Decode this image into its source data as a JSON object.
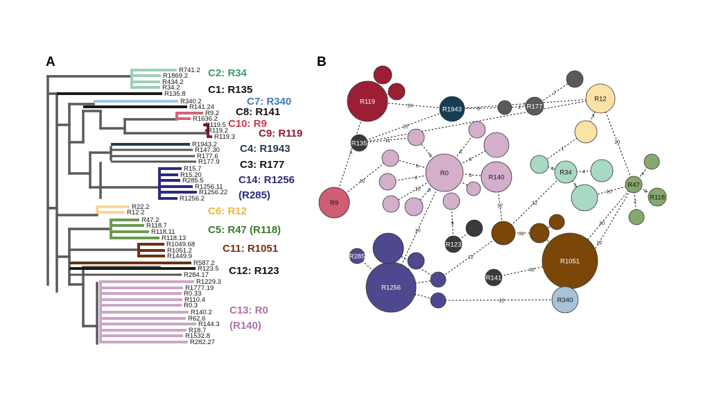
{
  "panels": {
    "a": "A",
    "b": "B"
  },
  "colors": {
    "skeleton": "#5a5a5a",
    "mint": "#9ed0b6",
    "black": "#1a1a1a",
    "lightblue": "#a9c5de",
    "pink": "#d76579",
    "darkred": "#8b1a2c",
    "navy": "#1e3a56",
    "indigo": "#2b2a7a",
    "gold": "#f7d98c",
    "green": "#6a9a52",
    "brown": "#6a3210",
    "lilac": "#cba6c6",
    "gray": "#555555",
    "node_lilac": "#d3afcc",
    "node_mint": "#a8d9c2",
    "node_green": "#86a86d",
    "node_indigo": "#4e488f",
    "node_brown": "#7a4708",
    "node_gold": "#fbe2a6",
    "node_pink": "#cf5d73",
    "node_red": "#9b1e34",
    "node_navy": "#183c56",
    "node_gray": "#5a5a5a",
    "node_lightblue": "#a7c3d8",
    "node_dark": "#3a3a3a"
  },
  "tree": {
    "leaves": [
      {
        "label": "R741.2",
        "color": "mint"
      },
      {
        "label": "R1869.2",
        "color": "mint"
      },
      {
        "label": "R434.2",
        "color": "mint"
      },
      {
        "label": "R34.2",
        "color": "mint"
      },
      {
        "label": "R135.8",
        "color": "black"
      },
      {
        "label": "R340.2",
        "color": "lightblue"
      },
      {
        "label": "R141.24",
        "color": "black"
      },
      {
        "label": "R9.2",
        "color": "pink"
      },
      {
        "label": "R1636.2",
        "color": "pink"
      },
      {
        "label": "R119.5",
        "color": "darkred"
      },
      {
        "label": "R119.2",
        "color": "darkred"
      },
      {
        "label": "R119.3",
        "color": "darkred"
      },
      {
        "label": "R1943.2",
        "color": "navy"
      },
      {
        "label": "R147.30",
        "color": "gray"
      },
      {
        "label": "R177.6",
        "color": "gray"
      },
      {
        "label": "R177.9",
        "color": "gray"
      },
      {
        "label": "R15.7",
        "color": "indigo"
      },
      {
        "label": "R15.20",
        "color": "indigo"
      },
      {
        "label": "R285.5",
        "color": "indigo"
      },
      {
        "label": "R1256.11",
        "color": "indigo"
      },
      {
        "label": "R1256.22",
        "color": "indigo"
      },
      {
        "label": "R1256.2",
        "color": "indigo"
      },
      {
        "label": "R22.2",
        "color": "gold"
      },
      {
        "label": "R12.2",
        "color": "gold"
      },
      {
        "label": "R47.2",
        "color": "green"
      },
      {
        "label": "R118.7",
        "color": "green"
      },
      {
        "label": "R118.11",
        "color": "green"
      },
      {
        "label": "R118.13",
        "color": "green"
      },
      {
        "label": "R1049.68",
        "color": "brown"
      },
      {
        "label": "R1051.2",
        "color": "brown"
      },
      {
        "label": "R1449.9",
        "color": "brown"
      },
      {
        "label": "R587.2",
        "color": "brown"
      },
      {
        "label": "R123.5",
        "color": "black"
      },
      {
        "label": "R284.17",
        "color": "gray"
      },
      {
        "label": "R1229.3",
        "color": "lilac"
      },
      {
        "label": "R1777.19",
        "color": "lilac"
      },
      {
        "label": "R0.33",
        "color": "lilac"
      },
      {
        "label": "R110.4",
        "color": "lilac"
      },
      {
        "label": "R0.3",
        "color": "lilac"
      },
      {
        "label": "R140.2",
        "color": "lilac"
      },
      {
        "label": "R62.6",
        "color": "lilac"
      },
      {
        "label": "R144.3",
        "color": "lilac"
      },
      {
        "label": "R18.7",
        "color": "lilac"
      },
      {
        "label": "R1532.8",
        "color": "lilac"
      },
      {
        "label": "R282.27",
        "color": "lilac"
      }
    ],
    "clades": [
      {
        "label": "C2: R34",
        "color": "#3a9a6a"
      },
      {
        "label": "C1: R135",
        "color": "#111111"
      },
      {
        "label": "C7: R340",
        "color": "#3f7bb4"
      },
      {
        "label": "C8: R141",
        "color": "#111111"
      },
      {
        "label": "C10: R9",
        "color": "#d0364f"
      },
      {
        "label": "C9: R119",
        "color": "#8b1a2c"
      },
      {
        "label": "C4: R1943",
        "color": "#1e3a56"
      },
      {
        "label": "C3: R177",
        "color": "#111111"
      },
      {
        "label": "C14: R1256",
        "color": "#2b2a7a"
      },
      {
        "label": "(R285)",
        "color": "#2b2a7a"
      },
      {
        "label": "C6: R12",
        "color": "#f0b43c"
      },
      {
        "label": "C5: R47 (R118)",
        "color": "#3c7a2c"
      },
      {
        "label": "C11: R1051",
        "color": "#6a3210"
      },
      {
        "label": "C12: R123",
        "color": "#111111"
      },
      {
        "label": "C13: R0",
        "color": "#b070a8"
      },
      {
        "label": "(R140)",
        "color": "#b070a8"
      }
    ]
  },
  "network": {
    "nodes": [
      {
        "id": "R119",
        "label": "R119",
        "color": "node_red",
        "text": "#ffffff"
      },
      {
        "id": "r119a",
        "label": "",
        "color": "node_red"
      },
      {
        "id": "r119b",
        "label": "",
        "color": "node_red"
      },
      {
        "id": "R1943",
        "label": "R1943",
        "color": "node_navy",
        "text": "#ffffff"
      },
      {
        "id": "R177",
        "label": "R177",
        "color": "node_gray",
        "text": "#ffffff"
      },
      {
        "id": "g1",
        "label": "",
        "color": "node_gray"
      },
      {
        "id": "g2",
        "label": "",
        "color": "node_gray"
      },
      {
        "id": "R12",
        "label": "R12",
        "color": "node_gold",
        "text": "#111111"
      },
      {
        "id": "gold2",
        "label": "",
        "color": "node_gold"
      },
      {
        "id": "R135",
        "label": "R135",
        "color": "node_dark",
        "text": "#ffffff"
      },
      {
        "id": "R9",
        "label": "R9",
        "color": "node_pink",
        "text": "#111111"
      },
      {
        "id": "R0",
        "label": "R0",
        "color": "node_lilac",
        "text": "#111111"
      },
      {
        "id": "R140",
        "label": "R140",
        "color": "node_lilac",
        "text": "#111111"
      },
      {
        "id": "l1",
        "label": "",
        "color": "node_lilac"
      },
      {
        "id": "l2",
        "label": "",
        "color": "node_lilac"
      },
      {
        "id": "l3",
        "label": "",
        "color": "node_lilac"
      },
      {
        "id": "l4",
        "label": "",
        "color": "node_lilac"
      },
      {
        "id": "l5",
        "label": "",
        "color": "node_lilac"
      },
      {
        "id": "l6",
        "label": "",
        "color": "node_lilac"
      },
      {
        "id": "l7",
        "label": "",
        "color": "node_lilac"
      },
      {
        "id": "l8",
        "label": "",
        "color": "node_lilac"
      },
      {
        "id": "l9",
        "label": "",
        "color": "node_lilac"
      },
      {
        "id": "l10",
        "label": "",
        "color": "node_lilac"
      },
      {
        "id": "R34",
        "label": "R34",
        "color": "node_mint",
        "text": "#111111"
      },
      {
        "id": "m1",
        "label": "",
        "color": "node_mint"
      },
      {
        "id": "m2",
        "label": "",
        "color": "node_mint"
      },
      {
        "id": "m3",
        "label": "",
        "color": "node_mint"
      },
      {
        "id": "R47",
        "label": "R47",
        "color": "node_green",
        "text": "#111111"
      },
      {
        "id": "R118",
        "label": "R118",
        "color": "node_green",
        "text": "#111111"
      },
      {
        "id": "gr1",
        "label": "",
        "color": "node_green"
      },
      {
        "id": "gr2",
        "label": "",
        "color": "node_green"
      },
      {
        "id": "R123",
        "label": "R123",
        "color": "node_dark",
        "text": "#ffffff"
      },
      {
        "id": "d1",
        "label": "",
        "color": "node_dark"
      },
      {
        "id": "b1",
        "label": "",
        "color": "node_brown"
      },
      {
        "id": "b2",
        "label": "",
        "color": "node_brown"
      },
      {
        "id": "b3",
        "label": "",
        "color": "node_brown"
      },
      {
        "id": "R1051",
        "label": "R1051",
        "color": "node_brown",
        "text": "#ffffff"
      },
      {
        "id": "R141",
        "label": "R141",
        "color": "node_dark",
        "text": "#ffffff"
      },
      {
        "id": "R285",
        "label": "R285",
        "color": "node_indigo",
        "text": "#ffffff"
      },
      {
        "id": "R1256",
        "label": "R1256",
        "color": "node_indigo",
        "text": "#ffffff"
      },
      {
        "id": "i1",
        "label": "",
        "color": "node_indigo"
      },
      {
        "id": "i2",
        "label": "",
        "color": "node_indigo"
      },
      {
        "id": "i3",
        "label": "",
        "color": "node_indigo"
      },
      {
        "id": "i4",
        "label": "",
        "color": "node_indigo"
      },
      {
        "id": "R340",
        "label": "R340",
        "color": "node_lightblue",
        "text": "#111111"
      }
    ],
    "edges": [
      {
        "a": "R119",
        "b": "R1943",
        "label": "13"
      },
      {
        "a": "R119",
        "b": "r119a",
        "label": ""
      },
      {
        "a": "R119",
        "b": "r119b",
        "label": ""
      },
      {
        "a": "R1943",
        "b": "g1",
        "label": "9"
      },
      {
        "a": "g1",
        "b": "R177",
        "label": "2"
      },
      {
        "a": "R177",
        "b": "g2",
        "label": "7"
      },
      {
        "a": "R1943",
        "b": "R135",
        "label": "12"
      },
      {
        "a": "R135",
        "b": "l1",
        "label": "11"
      },
      {
        "a": "R9",
        "b": "l3",
        "label": "12"
      },
      {
        "a": "R9",
        "b": "R119",
        "label": "3"
      },
      {
        "a": "R0",
        "b": "l1",
        "label": "9"
      },
      {
        "a": "R0",
        "b": "l2",
        "label": "6"
      },
      {
        "a": "R0",
        "b": "l10",
        "label": "6"
      },
      {
        "a": "R0",
        "b": "R140",
        "label": "5"
      },
      {
        "a": "R0",
        "b": "l3",
        "label": "6"
      },
      {
        "a": "R0",
        "b": "l4",
        "label": "8"
      },
      {
        "a": "R0",
        "b": "l5",
        "label": "10"
      },
      {
        "a": "R0",
        "b": "l6",
        "label": "8"
      },
      {
        "a": "R0",
        "b": "l7",
        "label": "2"
      },
      {
        "a": "R0",
        "b": "l8",
        "label": "8"
      },
      {
        "a": "R0",
        "b": "R1256",
        "label": "10"
      },
      {
        "a": "l7",
        "b": "R123",
        "label": "9"
      },
      {
        "a": "R123",
        "b": "d1",
        "label": ""
      },
      {
        "a": "R140",
        "b": "b1",
        "label": "12"
      },
      {
        "a": "b1",
        "b": "b2",
        "label": "12"
      },
      {
        "a": "b2",
        "b": "b3",
        "label": ""
      },
      {
        "a": "b2",
        "b": "R1051",
        "label": "2"
      },
      {
        "a": "R1051",
        "b": "R141",
        "label": "12"
      },
      {
        "a": "R1051",
        "b": "R47",
        "label": "10"
      },
      {
        "a": "b1",
        "b": "R34",
        "label": "12"
      },
      {
        "a": "b1",
        "b": "i1",
        "label": "12"
      },
      {
        "a": "R34",
        "b": "m1",
        "label": "4"
      },
      {
        "a": "R34",
        "b": "m2",
        "label": "4"
      },
      {
        "a": "R34",
        "b": "m3",
        "label": "3"
      },
      {
        "a": "m3",
        "b": "R47",
        "label": "10"
      },
      {
        "a": "R47",
        "b": "gr1",
        "label": "4"
      },
      {
        "a": "R47",
        "b": "R118",
        "label": "4"
      },
      {
        "a": "R47",
        "b": "gr2",
        "label": "2"
      },
      {
        "a": "R47",
        "b": "R12",
        "label": "10"
      },
      {
        "a": "R47",
        "b": "R340",
        "label": "12"
      },
      {
        "a": "R12",
        "b": "gold2",
        "label": "3"
      },
      {
        "a": "gold2",
        "b": "m1",
        "label": "1"
      },
      {
        "a": "R12",
        "b": "R1943",
        "label": "12"
      },
      {
        "a": "R12",
        "b": "R135",
        "label": ""
      },
      {
        "a": "R285",
        "b": "R1256",
        "label": "3"
      },
      {
        "a": "R1256",
        "b": "i3",
        "label": ""
      },
      {
        "a": "R1256",
        "b": "i1",
        "label": "6"
      },
      {
        "a": "R1256",
        "b": "i2",
        "label": "5"
      },
      {
        "a": "i1",
        "b": "i4",
        "label": "2"
      },
      {
        "a": "i2",
        "b": "R340",
        "label": "12"
      }
    ]
  }
}
